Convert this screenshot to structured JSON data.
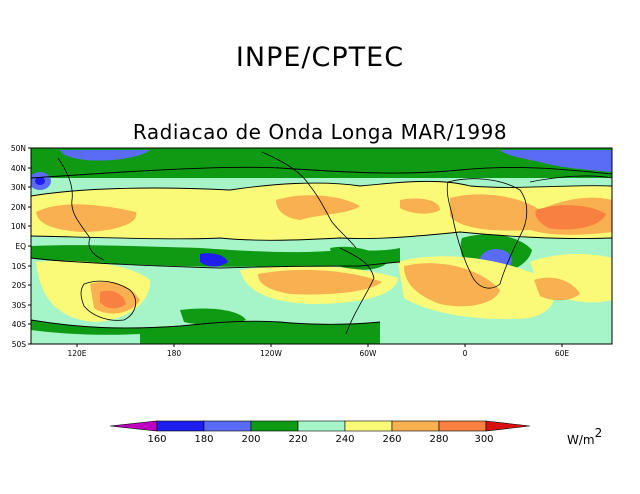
{
  "header": {
    "title": "INPE/CPTEC",
    "subtitle": "Radiacao de Onda Longa MAR/1998"
  },
  "map": {
    "lat_labels": [
      "50N",
      "40N",
      "30N",
      "20N",
      "10N",
      "EQ",
      "10S",
      "20S",
      "30S",
      "40S",
      "50S"
    ],
    "lon_labels": [
      "120E",
      "180",
      "120W",
      "60W",
      "0",
      "60E"
    ]
  },
  "colorbar": {
    "ticks": [
      "160",
      "180",
      "200",
      "220",
      "240",
      "260",
      "280",
      "300"
    ],
    "units": "W/m",
    "units_exp": "2",
    "colors": [
      "#c000c0",
      "#1e1ef0",
      "#5a6cf5",
      "#0f9a14",
      "#a6f5c8",
      "#fafa78",
      "#f8b050",
      "#f88040",
      "#d81010"
    ]
  }
}
